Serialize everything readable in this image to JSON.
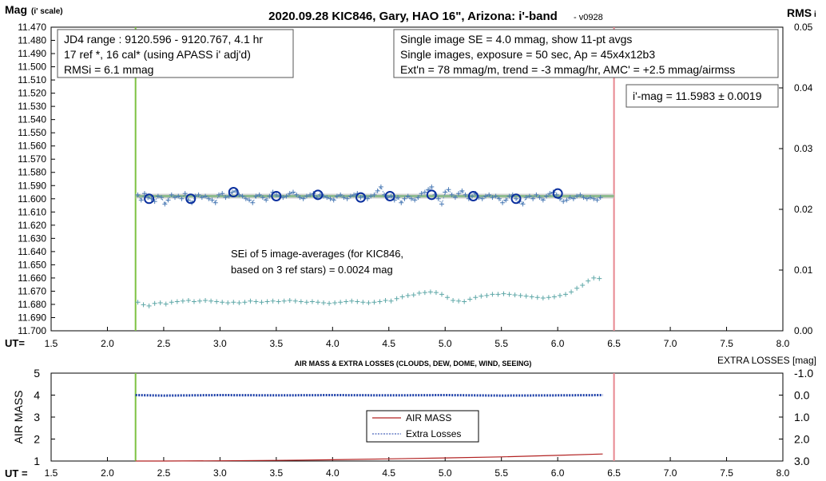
{
  "chart_data": [
    {
      "type": "scatter",
      "title": "2020.09.28 KIC846, Gary, HAO 16\", Arizona: i'-band",
      "title_suffix": "- v0928",
      "ylabel": "Mag",
      "ylabel_sub": "(i' scale)",
      "y2label": "RMS",
      "y2label_sub": "i",
      "xlabel": "UT=",
      "xlim": [
        1.5,
        8.0
      ],
      "xticks": [
        "1.5",
        "2.0",
        "2.5",
        "3.0",
        "3.5",
        "4.0",
        "4.5",
        "5.0",
        "5.5",
        "6.0",
        "6.5",
        "7.0",
        "7.5",
        "8.0"
      ],
      "ylim": [
        11.47,
        11.7
      ],
      "yticks": [
        "11.470",
        "11.480",
        "11.490",
        "11.500",
        "11.510",
        "11.520",
        "11.530",
        "11.540",
        "11.550",
        "11.560",
        "11.570",
        "11.580",
        "11.590",
        "11.600",
        "11.610",
        "11.620",
        "11.630",
        "11.640",
        "11.650",
        "11.660",
        "11.670",
        "11.680",
        "11.690",
        "11.700"
      ],
      "y2lim": [
        0.0,
        0.05
      ],
      "y2ticks": [
        "0.05",
        "0.04",
        "0.03",
        "0.02",
        "0.01",
        "0.00"
      ],
      "grid": false,
      "vlines": [
        {
          "x": 2.25,
          "color": "#7dc242"
        },
        {
          "x": 6.5,
          "color": "#e8878f"
        }
      ],
      "fit_line": {
        "x": [
          2.25,
          6.5
        ],
        "y": [
          11.598,
          11.598
        ],
        "color": "#8fbc8f"
      },
      "colors": {
        "points": "#4a7ab5",
        "averages": "#0a2f9e",
        "rms": "#5fa8a8"
      },
      "series": [
        {
          "x": [
            2.27,
            2.3,
            2.33,
            2.36,
            2.39,
            2.42,
            2.45,
            2.48,
            2.51,
            2.54,
            2.57,
            2.6,
            2.63,
            2.66,
            2.69,
            2.72,
            2.75,
            2.78,
            2.81,
            2.84,
            2.87,
            2.9,
            2.93,
            2.96,
            2.99,
            3.02,
            3.05,
            3.08,
            3.11,
            3.14,
            3.17,
            3.2,
            3.23,
            3.26,
            3.29,
            3.32,
            3.35,
            3.38,
            3.41,
            3.44,
            3.47,
            3.5,
            3.53,
            3.56,
            3.59,
            3.62,
            3.65,
            3.68,
            3.71,
            3.74,
            3.77,
            3.8,
            3.83,
            3.86,
            3.89,
            3.92,
            3.95,
            3.98,
            4.01,
            4.04,
            4.07,
            4.1,
            4.13,
            4.16,
            4.19,
            4.22,
            4.25,
            4.28,
            4.31,
            4.34,
            4.37,
            4.4,
            4.43,
            4.46,
            4.49,
            4.52,
            4.55,
            4.58,
            4.61,
            4.64,
            4.67,
            4.7,
            4.73,
            4.76,
            4.79,
            4.82,
            4.85,
            4.88,
            4.91,
            4.94,
            4.97,
            5.0,
            5.03,
            5.06,
            5.09,
            5.12,
            5.15,
            5.18,
            5.21,
            5.24,
            5.27,
            5.3,
            5.33,
            5.36,
            5.39,
            5.42,
            5.45,
            5.48,
            5.51,
            5.54,
            5.57,
            5.6,
            5.63,
            5.66,
            5.69,
            5.72,
            5.75,
            5.78,
            5.81,
            5.84,
            5.87,
            5.9,
            5.93,
            5.96,
            5.99,
            6.02,
            6.05,
            6.08,
            6.11,
            6.14,
            6.17,
            6.2,
            6.23,
            6.26,
            6.29,
            6.32,
            6.35,
            6.38
          ],
          "y": [
            11.597,
            11.601,
            11.596,
            11.599,
            11.6,
            11.602,
            11.598,
            11.599,
            11.604,
            11.601,
            11.597,
            11.599,
            11.598,
            11.6,
            11.596,
            11.601,
            11.603,
            11.598,
            11.597,
            11.599,
            11.598,
            11.6,
            11.601,
            11.603,
            11.597,
            11.596,
            11.599,
            11.598,
            11.595,
            11.594,
            11.597,
            11.598,
            11.6,
            11.601,
            11.603,
            11.598,
            11.597,
            11.599,
            11.601,
            11.598,
            11.595,
            11.597,
            11.598,
            11.599,
            11.598,
            11.596,
            11.595,
            11.597,
            11.599,
            11.6,
            11.598,
            11.597,
            11.596,
            11.599,
            11.597,
            11.598,
            11.599,
            11.6,
            11.601,
            11.598,
            11.597,
            11.599,
            11.6,
            11.598,
            11.597,
            11.596,
            11.599,
            11.598,
            11.6,
            11.598,
            11.597,
            11.594,
            11.591,
            11.597,
            11.599,
            11.598,
            11.601,
            11.599,
            11.603,
            11.6,
            11.598,
            11.6,
            11.601,
            11.599,
            11.596,
            11.595,
            11.593,
            11.591,
            11.597,
            11.6,
            11.604,
            11.595,
            11.593,
            11.597,
            11.599,
            11.596,
            11.594,
            11.597,
            11.6,
            11.598,
            11.596,
            11.599,
            11.6,
            11.598,
            11.597,
            11.599,
            11.598,
            11.6,
            11.603,
            11.601,
            11.598,
            11.597,
            11.6,
            11.602,
            11.604,
            11.599,
            11.598,
            11.6,
            11.597,
            11.599,
            11.601,
            11.598,
            11.596,
            11.595,
            11.597,
            11.6,
            11.602,
            11.601,
            11.599,
            11.6,
            11.598,
            11.597,
            11.599,
            11.6,
            11.599,
            11.6,
            11.601,
            11.599
          ]
        },
        {
          "x": [
            2.37,
            2.74,
            3.12,
            3.5,
            3.87,
            4.25,
            4.51,
            4.88,
            5.25,
            5.63,
            6.0
          ],
          "y": [
            11.6,
            11.6,
            11.595,
            11.598,
            11.597,
            11.599,
            11.598,
            11.597,
            11.598,
            11.6,
            11.596
          ]
        },
        {
          "x": [
            2.27,
            2.32,
            2.37,
            2.42,
            2.47,
            2.52,
            2.57,
            2.62,
            2.67,
            2.72,
            2.77,
            2.82,
            2.87,
            2.92,
            2.97,
            3.02,
            3.07,
            3.12,
            3.17,
            3.22,
            3.27,
            3.32,
            3.37,
            3.42,
            3.47,
            3.52,
            3.57,
            3.62,
            3.67,
            3.72,
            3.77,
            3.82,
            3.87,
            3.92,
            3.97,
            4.02,
            4.07,
            4.12,
            4.17,
            4.22,
            4.27,
            4.32,
            4.37,
            4.42,
            4.47,
            4.52,
            4.57,
            4.62,
            4.67,
            4.72,
            4.77,
            4.82,
            4.87,
            4.92,
            4.97,
            5.02,
            5.07,
            5.12,
            5.17,
            5.22,
            5.27,
            5.32,
            5.37,
            5.42,
            5.47,
            5.52,
            5.57,
            5.62,
            5.67,
            5.72,
            5.77,
            5.82,
            5.87,
            5.92,
            5.97,
            6.02,
            6.07,
            6.12,
            6.17,
            6.22,
            6.27,
            6.32,
            6.37
          ],
          "y": [
            0.0047,
            0.0043,
            0.0041,
            0.0045,
            0.0046,
            0.0044,
            0.0047,
            0.0048,
            0.0049,
            0.005,
            0.0048,
            0.0049,
            0.005,
            0.0049,
            0.0048,
            0.0047,
            0.0046,
            0.0047,
            0.0046,
            0.0047,
            0.0049,
            0.0048,
            0.0047,
            0.0048,
            0.0049,
            0.0048,
            0.0049,
            0.005,
            0.0049,
            0.0048,
            0.0047,
            0.0048,
            0.0047,
            0.0046,
            0.0045,
            0.0046,
            0.0047,
            0.0048,
            0.0049,
            0.0048,
            0.0047,
            0.0046,
            0.0047,
            0.0048,
            0.005,
            0.0049,
            0.0053,
            0.0056,
            0.0058,
            0.0059,
            0.0062,
            0.0063,
            0.0064,
            0.0063,
            0.006,
            0.0055,
            0.005,
            0.0049,
            0.0048,
            0.0052,
            0.0055,
            0.0057,
            0.0058,
            0.006,
            0.006,
            0.0061,
            0.006,
            0.0059,
            0.0058,
            0.0057,
            0.0056,
            0.0055,
            0.0054,
            0.0055,
            0.0056,
            0.0058,
            0.006,
            0.0064,
            0.007,
            0.0075,
            0.0082,
            0.0087,
            0.0086
          ]
        }
      ],
      "annotations": {
        "box1": [
          "JD4 range : 9120.596 - 9120.767, 4.1  hr",
          "17 ref *, 16 cal* (using APASS i' adj'd)",
          "RMSi = 6.1 mmag"
        ],
        "box2": [
          "Single image SE = 4.0 mmag, show 11-pt avgs",
          "Single images, exposure = 50 sec, Ap = 45x4x12b3",
          "Ext'n = 78 mmag/m, trend = -3 mmag/hr, AMC' = +2.5 mmag/airmss"
        ],
        "box3": "i'-mag = 11.5983 ± 0.0019",
        "box4": [
          "SEi of 5 image-averages (for KIC846,",
          "based on 3 ref stars) = 0.0024 mag"
        ]
      }
    },
    {
      "type": "line",
      "title": "AIR MASS & EXTRA LOSSES (CLOUDS, DEW, DOME, WIND, SEEING)",
      "ylabel": "AIR MASS",
      "y2label": "EXTRA LOSSES [mag]",
      "xlabel": "UT =",
      "xlim": [
        1.5,
        8.0
      ],
      "xticks": [
        "1.5",
        "2.0",
        "2.5",
        "3.0",
        "3.5",
        "4.0",
        "4.5",
        "5.0",
        "5.5",
        "6.0",
        "6.5",
        "7.0",
        "7.5",
        "8.0"
      ],
      "ylim": [
        1,
        5
      ],
      "yticks": [
        "5",
        "4",
        "3",
        "2",
        "1"
      ],
      "y2lim": [
        -1.0,
        3.0
      ],
      "y2ticks": [
        "-1.0",
        "0.0",
        "1.0",
        "2.0",
        "3.0"
      ],
      "legend_placement": "center",
      "vlines": [
        {
          "x": 2.25,
          "color": "#7dc242"
        },
        {
          "x": 6.5,
          "color": "#e8878f"
        }
      ],
      "series": [
        {
          "name": "AIR MASS",
          "color": "#b22222",
          "x": [
            2.25,
            2.5,
            3.0,
            3.5,
            4.0,
            4.5,
            5.0,
            5.5,
            6.0,
            6.4
          ],
          "y": [
            1.0,
            1.0,
            1.01,
            1.03,
            1.06,
            1.1,
            1.14,
            1.19,
            1.26,
            1.32
          ]
        },
        {
          "name": "Extra Losses",
          "color": "#1c3fa8",
          "x": [
            2.25,
            2.5,
            3.0,
            3.5,
            4.0,
            4.5,
            5.0,
            5.5,
            6.0,
            6.4
          ],
          "y": [
            0.0,
            0.02,
            0.0,
            0.01,
            0.0,
            0.01,
            0.0,
            0.02,
            0.01,
            0.0
          ]
        }
      ]
    }
  ]
}
